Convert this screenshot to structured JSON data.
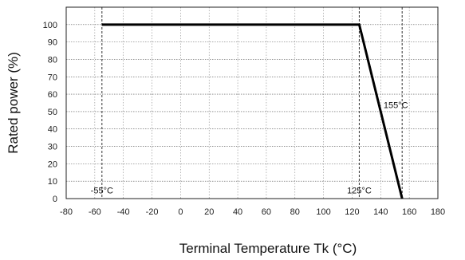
{
  "chart_data": {
    "type": "line",
    "xlabel": "Terminal Temperature Tk (°C)",
    "ylabel": "Rated power (%)",
    "xlim": [
      -80,
      180
    ],
    "ylim": [
      0,
      110
    ],
    "x_ticks": [
      "-80",
      "-60",
      "-40",
      "-20",
      "0",
      "20",
      "40",
      "60",
      "80",
      "100",
      "120",
      "140",
      "160",
      "180"
    ],
    "y_ticks": [
      "0",
      "10",
      "20",
      "30",
      "40",
      "50",
      "60",
      "70",
      "80",
      "90",
      "100"
    ],
    "grid": true,
    "series": [
      {
        "x": [
          -55,
          125,
          155
        ],
        "y": [
          100,
          100,
          0
        ]
      }
    ],
    "annotations": [
      {
        "text": "-55°C",
        "x": -55,
        "y": 3
      },
      {
        "text": "125°C",
        "x": 125,
        "y": 3
      },
      {
        "text": "155°C",
        "x": 155,
        "y": 52
      }
    ],
    "reference_lines_x": [
      -55,
      125,
      155
    ]
  }
}
